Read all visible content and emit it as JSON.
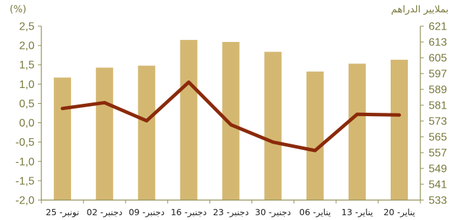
{
  "chart_data": {
    "type": "bar+line",
    "categories": [
      "25 -نونبر",
      "02 -دجنبر",
      "09 -دجنبر",
      "16 -دجنبر",
      "23 -دجنبر",
      "30 -دجنبر",
      "06 -يناير",
      "13 -يناير",
      "20 -يناير"
    ],
    "left_axis": {
      "unit_label": "(%)",
      "ylim": [
        -2.0,
        2.5
      ],
      "ticks": [
        "2,5",
        "2,0",
        "1,5",
        "1,0",
        "0,5",
        "0,0",
        "-0,5",
        "-1,0",
        "-1,5",
        "-2,0"
      ],
      "tick_values": [
        2.5,
        2.0,
        1.5,
        1.0,
        0.5,
        0.0,
        -0.5,
        -1.0,
        -1.5,
        -2.0
      ]
    },
    "right_axis": {
      "unit_label": "بملايير الدراهم",
      "ylim": [
        533,
        621
      ],
      "ticks": [
        "621",
        "613",
        "605",
        "597",
        "589",
        "581",
        "573",
        "565",
        "557",
        "549",
        "541",
        "533"
      ],
      "tick_values": [
        621,
        613,
        605,
        597,
        589,
        581,
        573,
        565,
        557,
        549,
        541,
        533
      ]
    },
    "series": [
      {
        "type": "bar",
        "axis": "right",
        "color": "#d4b872",
        "values": [
          595,
          600,
          601,
          614,
          613,
          608,
          598,
          602,
          604
        ]
      },
      {
        "type": "line",
        "axis": "left",
        "color": "#8b2a0a",
        "values": [
          0.37,
          0.52,
          0.05,
          1.05,
          -0.05,
          -0.5,
          -0.72,
          0.22,
          0.2
        ]
      }
    ],
    "grid": false,
    "legend": "none"
  }
}
